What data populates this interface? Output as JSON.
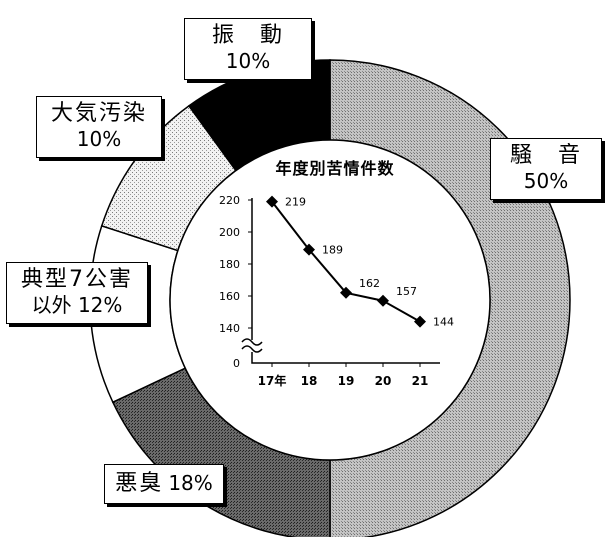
{
  "chart_data": [
    {
      "type": "pie",
      "variant": "donut",
      "slices": [
        {
          "label": "騒　音",
          "percent_label": "50%",
          "value": 50
        },
        {
          "label": "悪臭",
          "percent_label": "18%",
          "value": 18
        },
        {
          "label": "典型7公害以外",
          "line1": "典型7公害",
          "line2": "以外",
          "percent_label": "12%",
          "value": 12
        },
        {
          "label": "大気汚染",
          "percent_label": "10%",
          "value": 10
        },
        {
          "label": "振　動",
          "percent_label": "10%",
          "value": 10
        }
      ]
    },
    {
      "type": "line",
      "title": "年度別苦情件数",
      "categories": [
        "17年",
        "18",
        "19",
        "20",
        "21"
      ],
      "values": [
        219,
        189,
        162,
        157,
        144
      ],
      "y_ticks": [
        0,
        140,
        160,
        180,
        200,
        220
      ],
      "ylim": [
        140,
        220
      ],
      "axis_break": true,
      "marker": "diamond"
    }
  ],
  "colors": {
    "noise": "#b8b8b8",
    "odor": "#555555",
    "other": "#ffffff",
    "air": "#e2e2e2",
    "vibration": "#000000",
    "line": "#000000"
  }
}
